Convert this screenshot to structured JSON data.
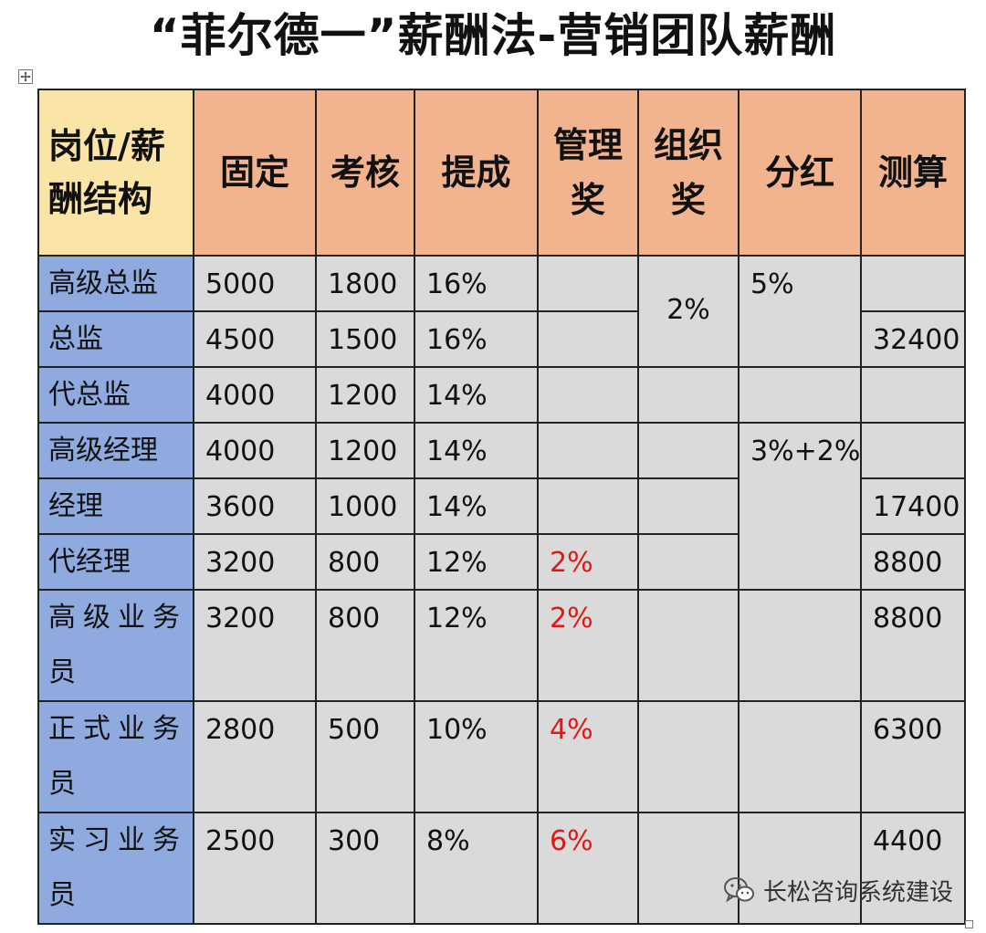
{
  "title": "“菲尔德一”薪酬法-营销团队薪酬",
  "headers": {
    "role": [
      "岗位/薪",
      "酬结构"
    ],
    "fixed": "固定",
    "assessment": "考核",
    "commission": "提成",
    "management_bonus": [
      "管理",
      "奖"
    ],
    "organization_bonus": [
      "组织",
      "奖"
    ],
    "dividend": "分红",
    "estimate": "测算"
  },
  "rows": [
    {
      "role": "高级总监",
      "fixed": "5000",
      "assessment": "1800",
      "commission": "16%",
      "management_bonus": "",
      "estimate": ""
    },
    {
      "role": "总监",
      "fixed": "4500",
      "assessment": "1500",
      "commission": "16%",
      "management_bonus": "",
      "estimate": "32400"
    },
    {
      "role": "代总监",
      "fixed": "4000",
      "assessment": "1200",
      "commission": "14%",
      "management_bonus": "",
      "organization_bonus": "",
      "dividend": "",
      "estimate": ""
    },
    {
      "role": "高级经理",
      "fixed": "4000",
      "assessment": "1200",
      "commission": "14%",
      "management_bonus": "",
      "organization_bonus": "",
      "estimate": ""
    },
    {
      "role": "经理",
      "fixed": "3600",
      "assessment": "1000",
      "commission": "14%",
      "management_bonus": "",
      "organization_bonus": "",
      "estimate": "17400"
    },
    {
      "role": "代经理",
      "fixed": "3200",
      "assessment": "800",
      "commission": "12%",
      "management_bonus": "2%",
      "organization_bonus": "",
      "estimate": "8800"
    },
    {
      "role_lines": [
        "高级业务",
        "员"
      ],
      "fixed": "3200",
      "assessment": "800",
      "commission": "12%",
      "management_bonus": "2%",
      "organization_bonus": "",
      "dividend": "",
      "estimate": "8800"
    },
    {
      "role_lines": [
        "正式业务",
        "员"
      ],
      "fixed": "2800",
      "assessment": "500",
      "commission": "10%",
      "management_bonus": "4%",
      "organization_bonus": "",
      "dividend": "",
      "estimate": "6300"
    },
    {
      "role_lines": [
        "实习业务",
        "员"
      ],
      "fixed": "2500",
      "assessment": "300",
      "commission": "8%",
      "management_bonus": "6%",
      "organization_bonus": "",
      "dividend": "",
      "estimate": "4400"
    }
  ],
  "merged": {
    "organization_bonus_top": "2%",
    "dividend_top": "5%",
    "dividend_mid": "3%+2%"
  },
  "colors": {
    "header_orange": "#f2b48f",
    "header_yellow": "#fbe5a6",
    "role_blue": "#8eaade",
    "cell_gray": "#dadada",
    "highlight_red": "#e01818"
  },
  "watermark": {
    "icon": "wechat-icon",
    "text": "长松咨询系统建设"
  }
}
